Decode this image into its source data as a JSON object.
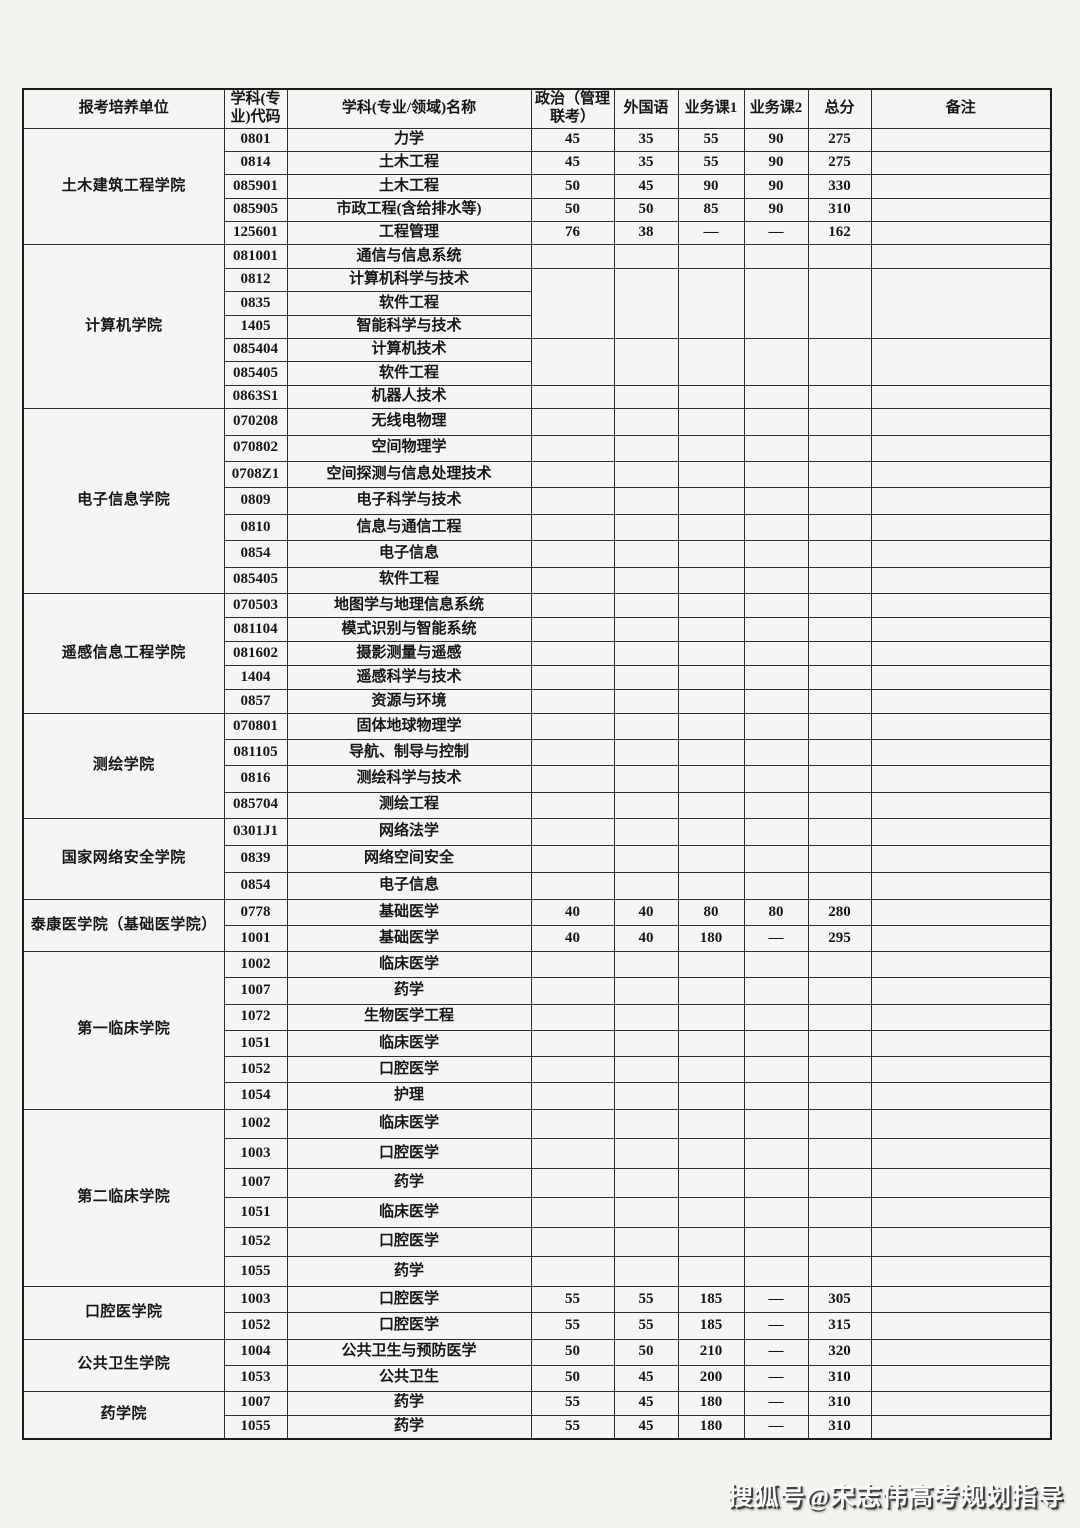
{
  "table": {
    "headers": {
      "unit": "报考培养单位",
      "code": "学科(专\n业)代码",
      "name": "学科(专业/领域)名称",
      "politics": "政治（管理\n联考）",
      "foreign": "外国语",
      "course1": "业务课1",
      "course2": "业务课2",
      "total": "总分",
      "remark": "备注"
    },
    "sections": [
      {
        "unit": "土木建筑工程学院",
        "rows": [
          {
            "code": "0801",
            "name": "力学",
            "politics": "45",
            "foreign": "35",
            "course1": "55",
            "course2": "90",
            "total": "275",
            "remark": ""
          },
          {
            "code": "0814",
            "name": "土木工程",
            "politics": "45",
            "foreign": "35",
            "course1": "55",
            "course2": "90",
            "total": "275",
            "remark": ""
          },
          {
            "code": "085901",
            "name": "土木工程",
            "politics": "50",
            "foreign": "45",
            "course1": "90",
            "course2": "90",
            "total": "330",
            "remark": ""
          },
          {
            "code": "085905",
            "name": "市政工程(含给排水等)",
            "politics": "50",
            "foreign": "50",
            "course1": "85",
            "course2": "90",
            "total": "310",
            "remark": ""
          },
          {
            "code": "125601",
            "name": "工程管理",
            "politics": "76",
            "foreign": "38",
            "course1": "—",
            "course2": "—",
            "total": "162",
            "remark": ""
          }
        ]
      },
      {
        "unit": "计算机学院",
        "rows": [
          {
            "code": "081001",
            "name": "通信与信息系统"
          },
          {
            "code": "0812",
            "name": "计算机科学与技术"
          },
          {
            "code": "0835",
            "name": "软件工程"
          },
          {
            "code": "1405",
            "name": "智能科学与技术"
          },
          {
            "code": "085404",
            "name": "计算机技术"
          },
          {
            "code": "085405",
            "name": "软件工程"
          },
          {
            "code": "0863S1",
            "name": "机器人技术"
          }
        ]
      },
      {
        "unit": "电子信息学院",
        "rows": [
          {
            "code": "070208",
            "name": "无线电物理"
          },
          {
            "code": "070802",
            "name": "空间物理学"
          },
          {
            "code": "0708Z1",
            "name": "空间探测与信息处理技术"
          },
          {
            "code": "0809",
            "name": "电子科学与技术"
          },
          {
            "code": "0810",
            "name": "信息与通信工程"
          },
          {
            "code": "0854",
            "name": "电子信息"
          },
          {
            "code": "085405",
            "name": "软件工程"
          }
        ]
      },
      {
        "unit": "遥感信息工程学院",
        "rows": [
          {
            "code": "070503",
            "name": "地图学与地理信息系统"
          },
          {
            "code": "081104",
            "name": "模式识别与智能系统"
          },
          {
            "code": "081602",
            "name": "摄影测量与遥感"
          },
          {
            "code": "1404",
            "name": "遥感科学与技术"
          },
          {
            "code": "0857",
            "name": "资源与环境"
          }
        ]
      },
      {
        "unit": "测绘学院",
        "rows": [
          {
            "code": "070801",
            "name": "固体地球物理学"
          },
          {
            "code": "081105",
            "name": "导航、制导与控制"
          },
          {
            "code": "0816",
            "name": "测绘科学与技术"
          },
          {
            "code": "085704",
            "name": "测绘工程"
          }
        ]
      },
      {
        "unit": "国家网络安全学院",
        "rows": [
          {
            "code": "0301J1",
            "name": "网络法学"
          },
          {
            "code": "0839",
            "name": "网络空间安全"
          },
          {
            "code": "0854",
            "name": "电子信息"
          }
        ]
      },
      {
        "unit": "泰康医学院（基础医学院）",
        "rows": [
          {
            "code": "0778",
            "name": "基础医学",
            "politics": "40",
            "foreign": "40",
            "course1": "80",
            "course2": "80",
            "total": "280",
            "remark": ""
          },
          {
            "code": "1001",
            "name": "基础医学",
            "politics": "40",
            "foreign": "40",
            "course1": "180",
            "course2": "—",
            "total": "295",
            "remark": ""
          }
        ]
      },
      {
        "unit": "第一临床学院",
        "rows": [
          {
            "code": "1002",
            "name": "临床医学"
          },
          {
            "code": "1007",
            "name": "药学"
          },
          {
            "code": "1072",
            "name": "生物医学工程"
          },
          {
            "code": "1051",
            "name": "临床医学"
          },
          {
            "code": "1052",
            "name": "口腔医学"
          },
          {
            "code": "1054",
            "name": "护理"
          }
        ]
      },
      {
        "unit": "第二临床学院",
        "rows": [
          {
            "code": "1002",
            "name": "临床医学"
          },
          {
            "code": "1003",
            "name": "口腔医学"
          },
          {
            "code": "1007",
            "name": "药学"
          },
          {
            "code": "1051",
            "name": "临床医学"
          },
          {
            "code": "1052",
            "name": "口腔医学"
          },
          {
            "code": "1055",
            "name": "药学"
          }
        ]
      },
      {
        "unit": "口腔医学院",
        "rows": [
          {
            "code": "1003",
            "name": "口腔医学",
            "politics": "55",
            "foreign": "55",
            "course1": "185",
            "course2": "—",
            "total": "305",
            "remark": ""
          },
          {
            "code": "1052",
            "name": "口腔医学",
            "politics": "55",
            "foreign": "55",
            "course1": "185",
            "course2": "—",
            "total": "315",
            "remark": ""
          }
        ]
      },
      {
        "unit": "公共卫生学院",
        "rows": [
          {
            "code": "1004",
            "name": "公共卫生与预防医学",
            "politics": "50",
            "foreign": "50",
            "course1": "210",
            "course2": "—",
            "total": "320",
            "remark": ""
          },
          {
            "code": "1053",
            "name": "公共卫生",
            "politics": "50",
            "foreign": "45",
            "course1": "200",
            "course2": "—",
            "total": "310",
            "remark": ""
          }
        ]
      },
      {
        "unit": "药学院",
        "rows": [
          {
            "code": "1007",
            "name": "药学",
            "politics": "55",
            "foreign": "45",
            "course1": "180",
            "course2": "—",
            "total": "310",
            "remark": ""
          },
          {
            "code": "1055",
            "name": "药学",
            "politics": "55",
            "foreign": "45",
            "course1": "180",
            "course2": "—",
            "total": "310",
            "remark": ""
          }
        ]
      }
    ]
  },
  "watermark": "搜狐号@宋志伟高考规划指导"
}
